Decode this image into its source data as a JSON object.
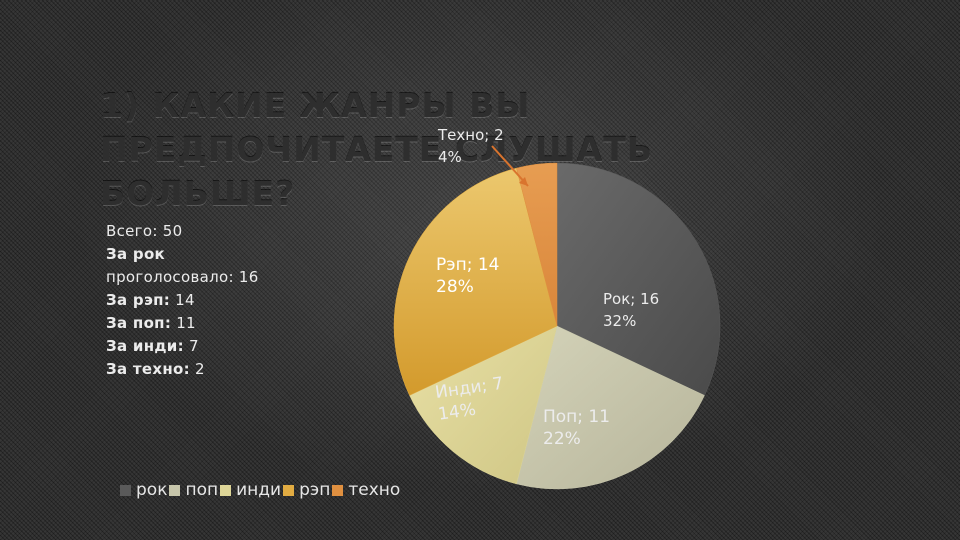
{
  "slide": {
    "title_line1": "1) КАКИЕ ЖАНРЫ ВЫ ПРЕДПОЧИТАЕТЕ СЛУШАТЬ",
    "title_line2": "БОЛЬШЕ?"
  },
  "stats": {
    "total": "Всего: 50",
    "rock_label": "За рок",
    "rock_value": "проголосовало: 16",
    "rap_label": "За рэп:",
    "rap_value": " 14",
    "pop_label": "За поп:",
    "pop_value": " 11",
    "indie_label": "За инди:",
    "indie_value": " 7",
    "techno_label": "За техно:",
    "techno_value": "  2"
  },
  "chart_data": {
    "type": "pie",
    "categories": [
      "рок",
      "поп",
      "инди",
      "рэп",
      "техно"
    ],
    "values": [
      16,
      11,
      7,
      14,
      2
    ],
    "percent": [
      32,
      22,
      14,
      28,
      4
    ],
    "colors": [
      "#5a5a5a",
      "#c7c6ab",
      "#ddd597",
      "#e2ac42",
      "#e09040"
    ],
    "data_labels": [
      {
        "name": "Рок; 16",
        "pct": "32%"
      },
      {
        "name": "Поп; 11",
        "pct": "22%"
      },
      {
        "name": "Инди; 7",
        "pct": "14%"
      },
      {
        "name": "Рэп; 14",
        "pct": "28%"
      },
      {
        "name": "Техно; 2",
        "pct": "4%"
      }
    ],
    "legend": [
      "рок",
      "поп",
      "инди",
      "рэп",
      "техно"
    ],
    "legend_position": "bottom-left"
  }
}
